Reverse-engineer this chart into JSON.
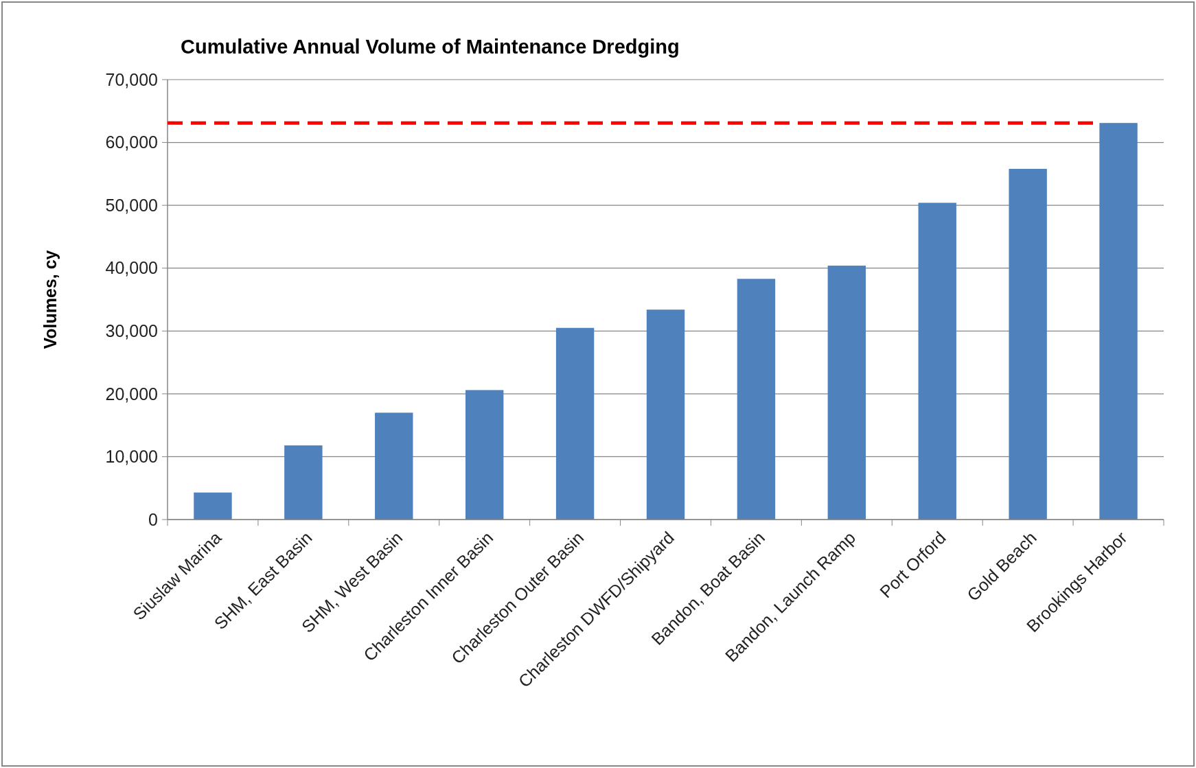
{
  "chart_data": {
    "type": "bar",
    "title": "Cumulative Annual Volume of Maintenance Dredging",
    "ylabel": "Volumes, cy",
    "categories": [
      "Siuslaw Marina",
      "SHM, East Basin",
      "SHM, West Basin",
      "Charleston Inner Basin",
      "Charleston Outer Basin",
      "Charleston DWFD/Shipyard",
      "Bandon, Boat Basin",
      "Bandon, Launch Ramp",
      "Port Orford",
      "Gold Beach",
      "Brookings Harbor"
    ],
    "values": [
      4300,
      11800,
      17000,
      20600,
      30500,
      33400,
      38300,
      40400,
      50400,
      55800,
      63100
    ],
    "color": "#4f81bd",
    "ylim": [
      0,
      70000
    ],
    "yticks": [
      {
        "value": 0,
        "label": "0"
      },
      {
        "value": 10000,
        "label": "10,000"
      },
      {
        "value": 20000,
        "label": "20,000"
      },
      {
        "value": 30000,
        "label": "30,000"
      },
      {
        "value": 40000,
        "label": "40,000"
      },
      {
        "value": 50000,
        "label": "50,000"
      },
      {
        "value": 60000,
        "label": "60,000"
      },
      {
        "value": 70000,
        "label": "70,000"
      }
    ],
    "grid": "y",
    "ref_lines": [
      {
        "axis": "y",
        "value": 63100,
        "color": "#ff0000",
        "line_style": "dashed"
      }
    ]
  }
}
